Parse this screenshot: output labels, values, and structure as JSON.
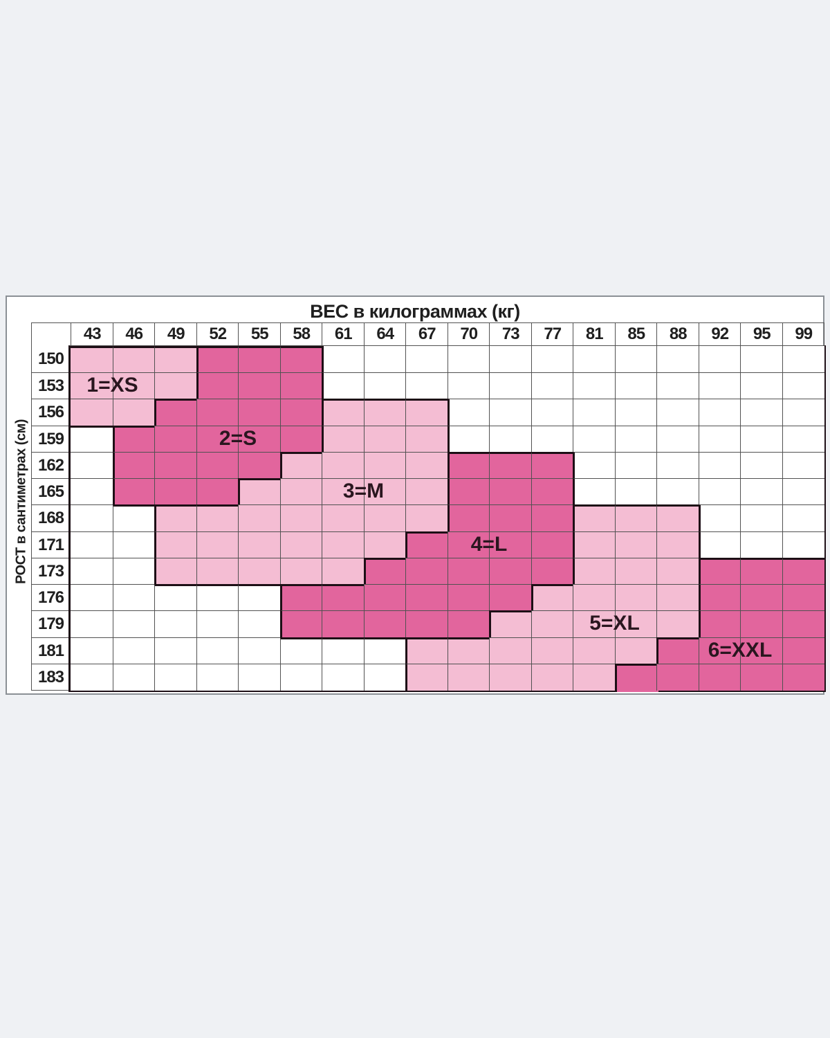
{
  "chart_data": {
    "type": "heatmap",
    "title": "ВЕС в килограммах (кг)",
    "xlabel": "ВЕС в килограммах (кг)",
    "ylabel": "РОСТ в сантиметрах (см)",
    "x_categories": [
      "43",
      "46",
      "49",
      "52",
      "55",
      "58",
      "61",
      "64",
      "67",
      "70",
      "73",
      "77",
      "81",
      "85",
      "88",
      "92",
      "95",
      "99"
    ],
    "y_categories": [
      "150",
      "153",
      "156",
      "159",
      "162",
      "165",
      "168",
      "171",
      "173",
      "176",
      "179",
      "181",
      "183"
    ],
    "cell_matrix": [
      "LLLDDDWWWWWWWWWWWW",
      "LLLDDDWWWWWWWWWWWW",
      "LLDDDDLLLWWWWWWWWW",
      "WDDDDDLLLWWWWWWWWW",
      "WDDDDLLLLDDDWWWWWW",
      "WDDDLLLLLDDDWWWWWW",
      "WWLLLLLLLDDDLLLWWW",
      "WWLLLLLLDDDDLLLWWW",
      "WWLLLLLDDDDDLLLDDD",
      "WWWWWDDDDDDLLLLDDD",
      "WWWWWDDDDDLLLLLDDD",
      "WWWWWWWWLLLLLLDDDD",
      "WWWWWWWWLLLLLDDDDD"
    ],
    "cell_legend": {
      "W": "white — outside size range",
      "L": "light pink size zone",
      "D": "dark pink size zone"
    },
    "size_zones": [
      {
        "label": "1=XS",
        "row_index": 1,
        "col_start": 0,
        "col_end": 1
      },
      {
        "label": "2=S",
        "row_index": 3,
        "col_start": 3,
        "col_end": 4
      },
      {
        "label": "3=M",
        "row_index": 5,
        "col_start": 6,
        "col_end": 7
      },
      {
        "label": "4=L",
        "row_index": 7,
        "col_start": 9,
        "col_end": 10
      },
      {
        "label": "5=XL",
        "row_index": 10,
        "col_start": 12,
        "col_end": 13
      },
      {
        "label": "6=XXL",
        "row_index": 11,
        "col_start": 15,
        "col_end": 16
      }
    ],
    "colors": {
      "light_pink": "#F4BDD3",
      "dark_pink": "#E2659D",
      "thin_grid": "#515151",
      "thick_border": "#1D0F16",
      "panel_border": "#8B9095",
      "page_background": "#EFF1F4",
      "panel_background": "#FFFFFF",
      "text": "#1F1F1F",
      "zone_label_text": "#2A161F"
    }
  }
}
